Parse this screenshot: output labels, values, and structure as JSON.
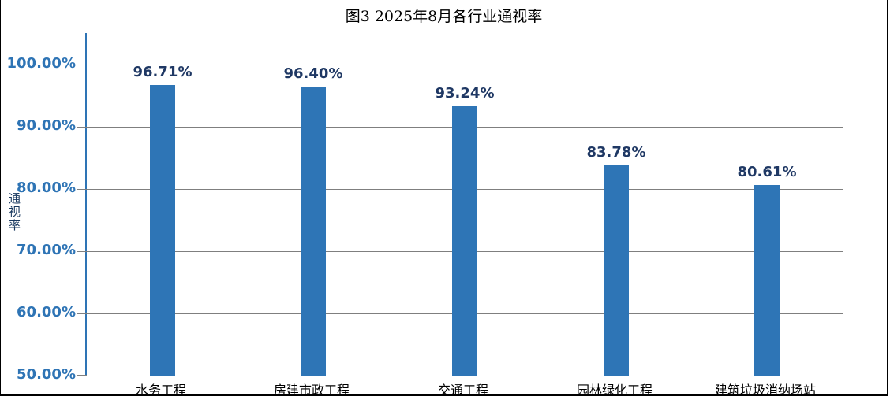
{
  "chart_data": {
    "type": "bar",
    "title": "图3 2025年8月各行业通视率",
    "ylabel": "通视率",
    "xlabel": "",
    "categories": [
      "水务工程",
      "房建市政工程",
      "交通工程",
      "园林绿化工程",
      "建筑垃圾消纳场站"
    ],
    "values": [
      96.71,
      96.4,
      93.24,
      83.78,
      80.61
    ],
    "value_labels": [
      "96.71%",
      "96.40%",
      "93.24%",
      "83.78%",
      "80.61%"
    ],
    "yticks": [
      100,
      90,
      80,
      70,
      60,
      50
    ],
    "ytick_labels": [
      "100.00%",
      "90.00%",
      "80.00%",
      "70.00%",
      "60.00%",
      "50.00%"
    ],
    "ylim": [
      50,
      105
    ],
    "grid": true,
    "legend_position": "none",
    "colors": {
      "bar_fill": "#2E75B6",
      "value_label": "#1F3864",
      "ytick_label": "#2E74B5",
      "y_axis_line": "#2E74B5",
      "grid_line": "#7F7F7F",
      "title_text": "#000000",
      "frame_border": "#000000"
    }
  }
}
